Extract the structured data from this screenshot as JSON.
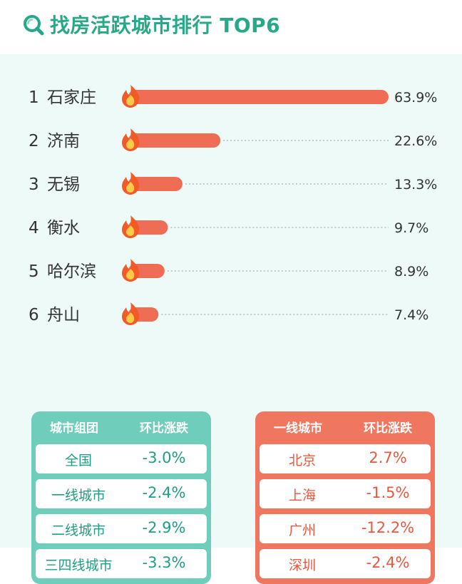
{
  "header": {
    "title": "找房活跃城市排行 TOP6",
    "icon": "search-icon",
    "accent_color": "#27a889"
  },
  "chart_data": {
    "type": "bar",
    "orientation": "horizontal",
    "title": "找房活跃城市排行 TOP6",
    "ranks": [
      "1",
      "2",
      "3",
      "4",
      "5",
      "6"
    ],
    "categories": [
      "石家庄",
      "济南",
      "无锡",
      "衡水",
      "哈尔滨",
      "舟山"
    ],
    "values": [
      63.9,
      22.6,
      13.3,
      9.7,
      8.9,
      7.4
    ],
    "value_labels": [
      "63.9%",
      "22.6%",
      "13.3%",
      "9.7%",
      "8.9%",
      "7.4%"
    ],
    "xlim": [
      0,
      63.9
    ],
    "bar_color": "#ef6d55",
    "marker_icon": "fire-icon"
  },
  "tables": {
    "groups": {
      "col1": "城市组团",
      "col2": "环比涨跌",
      "color": "#6fcdbb",
      "rows": [
        {
          "name": "全国",
          "value": "-3.0%"
        },
        {
          "name": "一线城市",
          "value": "-2.4%"
        },
        {
          "name": "二线城市",
          "value": "-2.9%"
        },
        {
          "name": "三四线城市",
          "value": "-3.3%"
        }
      ]
    },
    "tier1": {
      "col1": "一线城市",
      "col2": "环比涨跌",
      "color": "#ef765f",
      "rows": [
        {
          "name": "北京",
          "value": "2.7%"
        },
        {
          "name": "上海",
          "value": "-1.5%"
        },
        {
          "name": "广州",
          "value": "-12.2%"
        },
        {
          "name": "深圳",
          "value": "-2.4%"
        }
      ]
    }
  }
}
